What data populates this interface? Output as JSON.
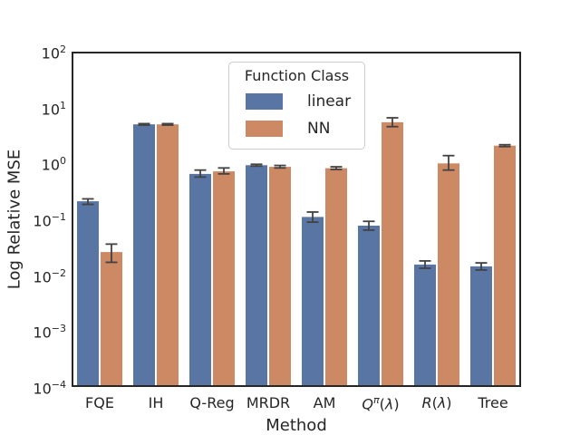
{
  "chart_data": {
    "type": "bar",
    "title": "",
    "xlabel": "Method",
    "ylabel": "Log Relative MSE",
    "yscale": "log",
    "ylim": [
      0.0001,
      100
    ],
    "y_tick_exponents": [
      2,
      1,
      0,
      -1,
      -2,
      -3,
      -4
    ],
    "grid": false,
    "categories": [
      "FQE",
      "IH",
      "Q-Reg",
      "MRDR",
      "AM",
      "Q^π(λ)",
      "R(λ)",
      "Tree"
    ],
    "series": [
      {
        "name": "linear",
        "color": "#5975A4",
        "values": [
          0.21,
          5.0,
          0.65,
          0.93,
          0.11,
          0.077,
          0.0155,
          0.0144
        ],
        "err_low": [
          0.185,
          4.85,
          0.57,
          0.895,
          0.089,
          0.064,
          0.0133,
          0.0124
        ],
        "err_high": [
          0.232,
          5.15,
          0.76,
          0.965,
          0.135,
          0.092,
          0.018,
          0.0166
        ]
      },
      {
        "name": "NN",
        "color": "#CC8963",
        "values": [
          0.026,
          5.0,
          0.72,
          0.87,
          0.82,
          5.45,
          1.0,
          2.08
        ],
        "err_low": [
          0.017,
          4.85,
          0.65,
          0.83,
          0.78,
          4.55,
          0.76,
          2.0
        ],
        "err_high": [
          0.036,
          5.15,
          0.83,
          0.92,
          0.87,
          6.55,
          1.38,
          2.16
        ]
      }
    ],
    "legend": {
      "title": "Function Class",
      "position": "upper center"
    },
    "error_bar_color": "#424242",
    "spine_color": "#262626"
  }
}
